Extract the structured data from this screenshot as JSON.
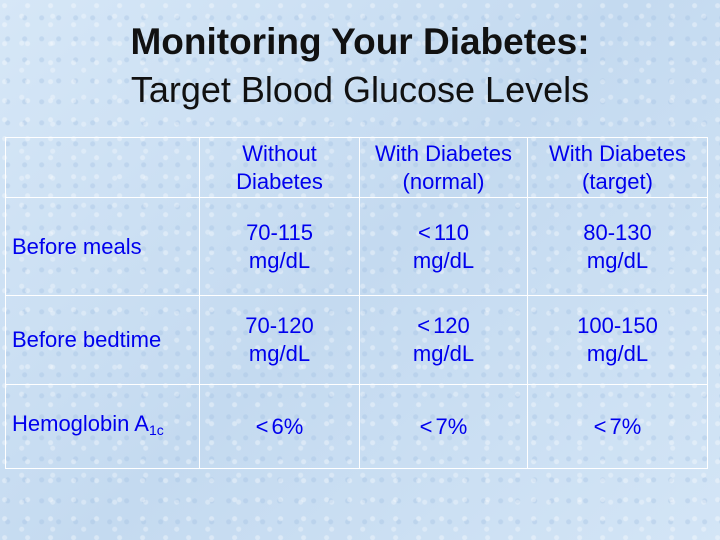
{
  "title": {
    "line1": "Monitoring Your Diabetes:",
    "line2": "Target Blood Glucose Levels"
  },
  "table": {
    "headers": {
      "without_diabetes": [
        "Without",
        "Diabetes"
      ],
      "with_diabetes_normal": [
        "With Diabetes",
        "(normal)"
      ],
      "with_diabetes_target": [
        "With Diabetes",
        "(target)"
      ]
    },
    "rows": {
      "before_meals": {
        "label": "Before meals",
        "without": [
          "70-115",
          "mg/dL"
        ],
        "normal_symbol": "<",
        "normal": [
          "110",
          "mg/dL"
        ],
        "target": [
          "80-130",
          "mg/dL"
        ]
      },
      "before_bedtime": {
        "label": "Before bedtime",
        "without": [
          "70-120",
          "mg/dL"
        ],
        "normal_symbol": "<",
        "normal": [
          "120",
          "mg/dL"
        ],
        "target": [
          "100-150",
          "mg/dL"
        ]
      },
      "hemoglobin": {
        "label": "Hemoglobin A",
        "label_subscript": "1c",
        "without_symbol": "<",
        "without": "6%",
        "normal_symbol": "<",
        "normal": "7%",
        "target_symbol": "<",
        "target": "7%"
      }
    }
  },
  "colors": {
    "text_blue": "#0000ee",
    "title_text": "#111111",
    "grid_lines": "#ffffff",
    "background": "#cfe2f3"
  }
}
